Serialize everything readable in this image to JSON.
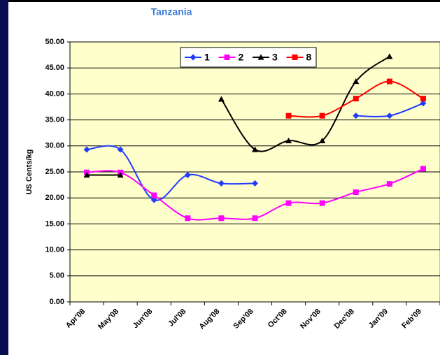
{
  "chart_data": {
    "type": "line",
    "title": "Tanzania",
    "y_label": "US Cents/kg",
    "categories": [
      "Apr'08",
      "May'08",
      "Jun'08",
      "Jul'08",
      "Aug'08",
      "Sep'08",
      "Oct'08",
      "Nov'08",
      "Dec'08",
      "Jan'09",
      "Feb'09"
    ],
    "series": [
      {
        "name": "1",
        "color": "#1f3cff",
        "marker": "diamond",
        "values": [
          29.3,
          29.3,
          19.6,
          24.4,
          22.8,
          22.8,
          null,
          null,
          35.8,
          35.8,
          38.2
        ]
      },
      {
        "name": "2",
        "color": "#ff00ff",
        "marker": "square",
        "values": [
          24.9,
          24.9,
          20.5,
          16.1,
          16.1,
          16.1,
          19.0,
          19.0,
          21.1,
          22.7,
          25.6
        ]
      },
      {
        "name": "3",
        "color": "#000000",
        "marker": "triangle",
        "values": [
          24.4,
          24.4,
          null,
          null,
          39.0,
          29.3,
          31.0,
          31.0,
          42.4,
          47.2,
          null
        ]
      },
      {
        "name": "8",
        "color": "#ff0000",
        "marker": "square",
        "values": [
          null,
          null,
          null,
          null,
          null,
          null,
          35.8,
          35.8,
          39.1,
          42.4,
          39.1
        ]
      }
    ],
    "ylim": [
      0,
      50
    ],
    "yticks": [
      {
        "value": 0,
        "label": "0.00"
      },
      {
        "value": 5,
        "label": "5.00"
      },
      {
        "value": 10,
        "label": "10.00"
      },
      {
        "value": 15,
        "label": "15.00"
      },
      {
        "value": 20,
        "label": "20.00"
      },
      {
        "value": 25,
        "label": "25.00"
      },
      {
        "value": 30,
        "label": "30.00"
      },
      {
        "value": 35,
        "label": "35.00"
      },
      {
        "value": 40,
        "label": "40.00"
      },
      {
        "value": 45,
        "label": "45.00"
      },
      {
        "value": 50,
        "label": "50.00"
      }
    ],
    "grid": true,
    "legend": "top",
    "plot_color": "#ffffcc"
  }
}
